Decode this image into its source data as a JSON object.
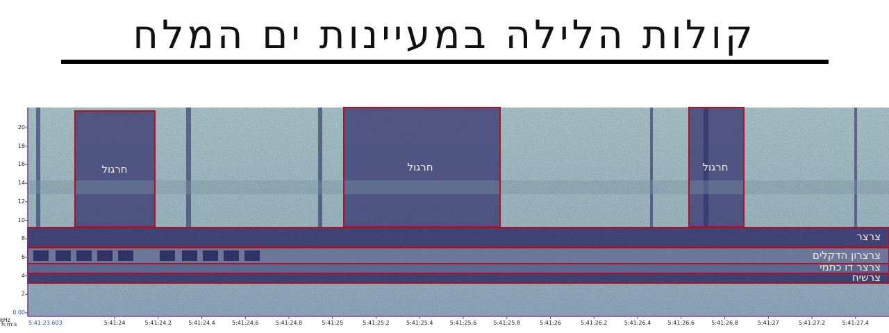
{
  "title": "קולות הלילה במעיינות ים המלח",
  "axis": {
    "y_unit": "kHz",
    "x_unit": "h:m:s",
    "y_ticks": [
      "0.00",
      "2",
      "4",
      "6",
      "8",
      "10",
      "12",
      "14",
      "16",
      "18",
      "20"
    ],
    "x_start": "5:41:23.603",
    "x_ticks": [
      "5:41:24",
      "5:41:24.2",
      "5:41:24.4",
      "5:41:24.6",
      "5:41:24.8",
      "5:41:25",
      "5:41:25.2",
      "5:41:25.4",
      "5:41:25.6",
      "5:41:25.8",
      "5:41:26",
      "5:41:26.2",
      "5:41:26.4",
      "5:41:26.6",
      "5:41:26.8",
      "5:41:27",
      "5:41:27.2",
      "5:41:27.4"
    ]
  },
  "annotations": [
    {
      "label": "חרגול"
    },
    {
      "label": "חרגול"
    },
    {
      "label": "חרגול"
    },
    {
      "label": "צרצר"
    },
    {
      "label": "צרצרון הדקלים"
    },
    {
      "label": "צרצר דו כתמי"
    },
    {
      "label": "צרשיח"
    }
  ]
}
